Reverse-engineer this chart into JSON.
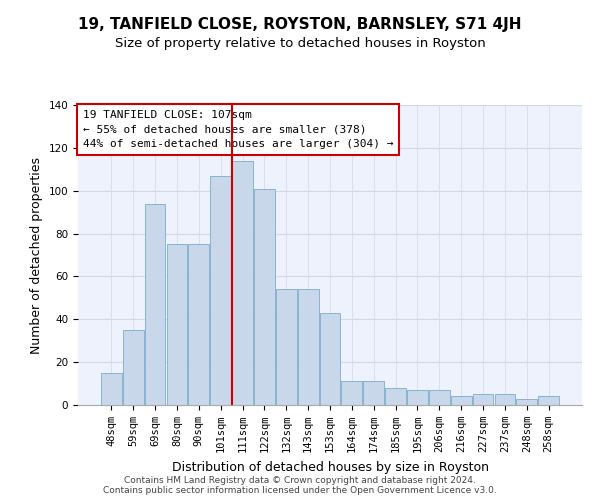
{
  "title": "19, TANFIELD CLOSE, ROYSTON, BARNSLEY, S71 4JH",
  "subtitle": "Size of property relative to detached houses in Royston",
  "xlabel": "Distribution of detached houses by size in Royston",
  "ylabel": "Number of detached properties",
  "bar_labels": [
    "48sqm",
    "59sqm",
    "69sqm",
    "80sqm",
    "90sqm",
    "101sqm",
    "111sqm",
    "122sqm",
    "132sqm",
    "143sqm",
    "153sqm",
    "164sqm",
    "174sqm",
    "185sqm",
    "195sqm",
    "206sqm",
    "216sqm",
    "227sqm",
    "237sqm",
    "248sqm",
    "258sqm"
  ],
  "bar_values": [
    15,
    35,
    94,
    75,
    75,
    107,
    114,
    101,
    54,
    54,
    43,
    11,
    11,
    8,
    7,
    7,
    4,
    5,
    5,
    3,
    4
  ],
  "bar_color": "#c8d8ea",
  "bar_edge_color": "#7aabcc",
  "vline_color": "#cc0000",
  "vline_x": 6.0,
  "annotation_text": "19 TANFIELD CLOSE: 107sqm\n← 55% of detached houses are smaller (378)\n44% of semi-detached houses are larger (304) →",
  "annotation_box_color": "#ffffff",
  "annotation_box_edge": "#cc0000",
  "ylim": [
    0,
    140
  ],
  "yticks": [
    0,
    20,
    40,
    60,
    80,
    100,
    120,
    140
  ],
  "grid_color": "#d0d8ea",
  "background_color": "#eef2fc",
  "footer": "Contains HM Land Registry data © Crown copyright and database right 2024.\nContains public sector information licensed under the Open Government Licence v3.0.",
  "title_fontsize": 11,
  "subtitle_fontsize": 9.5,
  "xlabel_fontsize": 9,
  "ylabel_fontsize": 9,
  "tick_fontsize": 7.5,
  "annotation_fontsize": 8,
  "footer_fontsize": 6.5
}
